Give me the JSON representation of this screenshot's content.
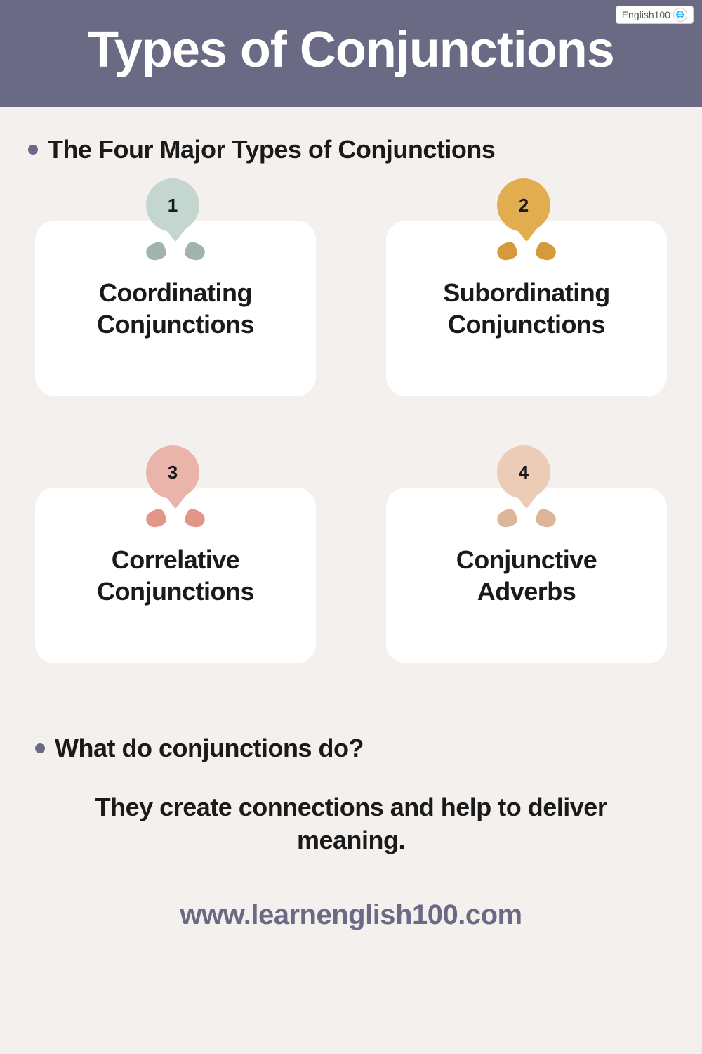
{
  "header": {
    "title": "Types of Conjunctions",
    "badge_text": "English100",
    "background_color": "#6a6a85",
    "title_color": "#ffffff"
  },
  "subheading": "The Four Major Types of Conjunctions",
  "bullet_color": "#6a6a85",
  "cards": [
    {
      "number": "1",
      "title": "Coordinating Conjunctions",
      "pin_color": "#c3d6cf",
      "drop_color": "#a0b3ac"
    },
    {
      "number": "2",
      "title": "Subordinating Conjunctions",
      "pin_color": "#e1ad4f",
      "drop_color": "#d49a3c"
    },
    {
      "number": "3",
      "title": "Correlative Conjunctions",
      "pin_color": "#eab4ab",
      "drop_color": "#e29688"
    },
    {
      "number": "4",
      "title": "Conjunctive Adverbs",
      "pin_color": "#ecccb7",
      "drop_color": "#dcb59a"
    }
  ],
  "question": "What do conjunctions do?",
  "answer": "They create connections and help to deliver meaning.",
  "footer_url": "www.learnenglish100.com",
  "page_background": "#f4f0ed",
  "card_background": "#ffffff"
}
